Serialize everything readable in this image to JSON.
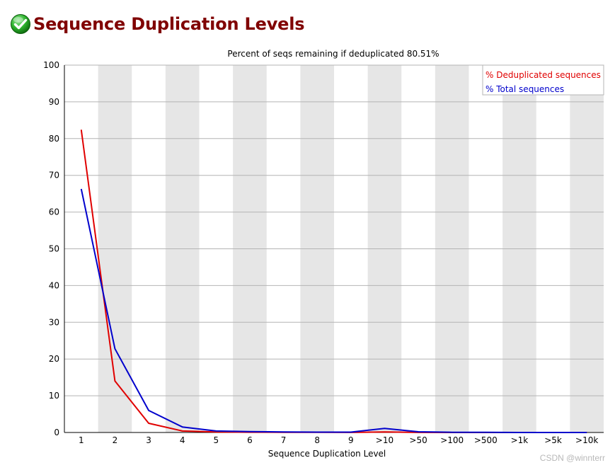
{
  "page": {
    "title": "Sequence Duplication Levels",
    "status_icon": "pass-checkmark-icon",
    "watermark": "CSDN @winnterr"
  },
  "colors": {
    "title": "#800000",
    "dedup_series": "#e00000",
    "total_series": "#0000cc",
    "band": "#e6e6e6",
    "grid": "#b4b4b4",
    "icon_green": "#1ea51e"
  },
  "chart_data": {
    "type": "line",
    "title": "Percent of seqs remaining if deduplicated 80.51%",
    "xlabel": "Sequence Duplication Level",
    "ylabel": "",
    "ylim": [
      0,
      100
    ],
    "yticks": [
      0,
      10,
      20,
      30,
      40,
      50,
      60,
      70,
      80,
      90,
      100
    ],
    "categories": [
      "1",
      "2",
      "3",
      "4",
      "5",
      "6",
      "7",
      "8",
      "9",
      ">10",
      ">50",
      ">100",
      ">500",
      ">1k",
      ">5k",
      ">10k"
    ],
    "series": [
      {
        "name": "% Deduplicated sequences",
        "color": "#e00000",
        "values": [
          82.4,
          14.0,
          2.5,
          0.4,
          0.15,
          0.08,
          0.05,
          0.03,
          0.02,
          0.15,
          0.02,
          0.0,
          0.0,
          0.0,
          0.0,
          0.0
        ]
      },
      {
        "name": "% Total sequences",
        "color": "#0000cc",
        "values": [
          66.3,
          22.8,
          6.0,
          1.5,
          0.4,
          0.25,
          0.15,
          0.1,
          0.1,
          1.1,
          0.2,
          0.05,
          0.03,
          0.0,
          0.0,
          0.0
        ]
      }
    ],
    "legend_position": "top-right",
    "grid": true,
    "alternating_bands": true
  }
}
